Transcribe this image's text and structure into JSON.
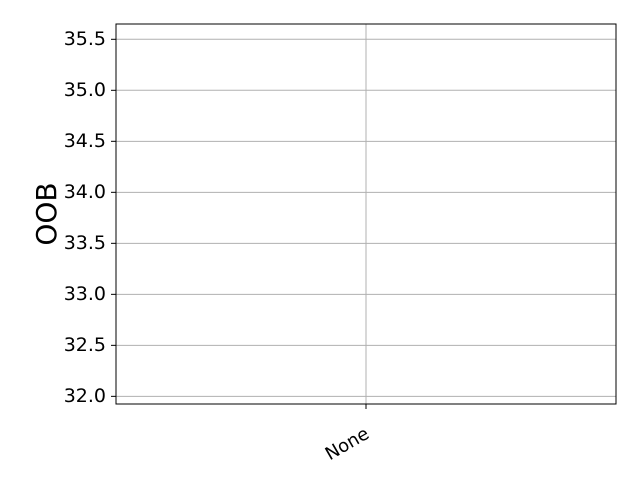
{
  "chart_data": {
    "type": "line",
    "title": "",
    "xlabel": "",
    "ylabel": "OOB",
    "categories": [
      "None"
    ],
    "series": [
      {
        "values": [
          null
        ]
      }
    ],
    "ylim": [
      31.925,
      35.65
    ],
    "yticks": [
      "32.0",
      "32.5",
      "33.0",
      "33.5",
      "34.0",
      "34.5",
      "35.0",
      "35.5"
    ],
    "ytick_values": [
      32.0,
      32.5,
      33.0,
      33.5,
      34.0,
      34.5,
      35.0,
      35.5
    ],
    "grid": true
  }
}
